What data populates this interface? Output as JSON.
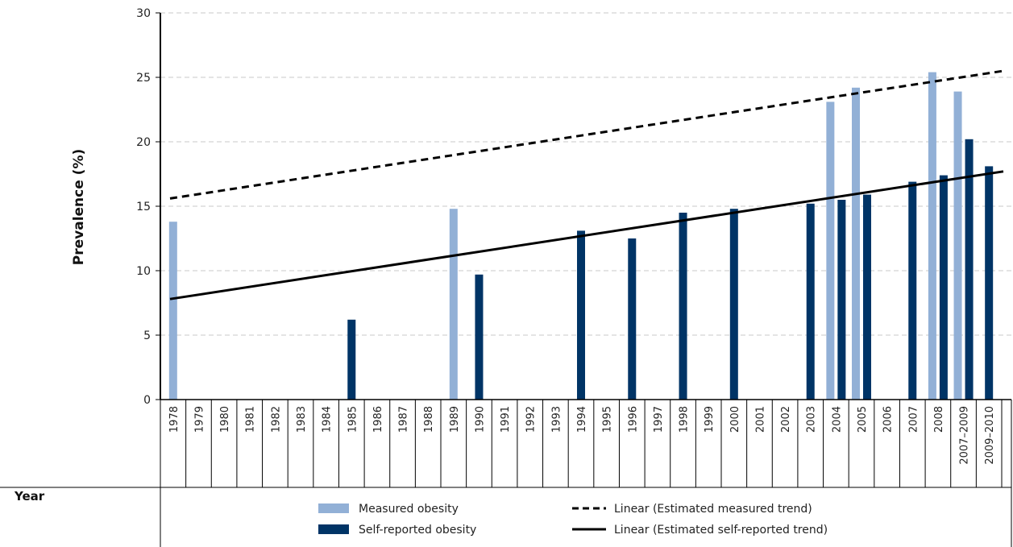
{
  "chart_data": {
    "type": "bar",
    "ylabel": "Prevalence (%)",
    "xlabel": "Year",
    "ylim": [
      0,
      30
    ],
    "yticks": [
      0,
      5,
      10,
      15,
      20,
      25,
      30
    ],
    "grid": true,
    "legend_position": "bottom",
    "categories": [
      "1978",
      "1979",
      "1980",
      "1981",
      "1982",
      "1983",
      "1984",
      "1985",
      "1986",
      "1987",
      "1988",
      "1989",
      "1990",
      "1991",
      "1992",
      "1993",
      "1994",
      "1995",
      "1996",
      "1997",
      "1998",
      "1999",
      "2000",
      "2001",
      "2002",
      "2003",
      "2004",
      "2005",
      "2006",
      "2007",
      "2008",
      "2007–2009",
      "2009–2010"
    ],
    "series": [
      {
        "name": "Measured obesity",
        "color": "#92B0D6",
        "values": [
          13.8,
          null,
          null,
          null,
          null,
          null,
          null,
          null,
          null,
          null,
          null,
          14.8,
          null,
          null,
          null,
          null,
          null,
          null,
          null,
          null,
          null,
          null,
          null,
          null,
          null,
          null,
          23.1,
          24.2,
          null,
          null,
          25.4,
          23.9,
          null
        ]
      },
      {
        "name": "Self-reported obesity",
        "color": "#003466",
        "values": [
          null,
          null,
          null,
          null,
          null,
          null,
          null,
          6.2,
          null,
          null,
          null,
          null,
          9.7,
          null,
          null,
          null,
          13.1,
          null,
          12.5,
          null,
          14.5,
          null,
          14.8,
          null,
          null,
          15.2,
          15.5,
          15.9,
          null,
          16.9,
          17.4,
          20.2,
          18.1
        ]
      }
    ],
    "trendlines": [
      {
        "name": "Linear (Estimated measured trend)",
        "style": "dashed",
        "color": "#000000",
        "start": 15.6,
        "end": 25.5
      },
      {
        "name": "Linear (Estimated self-reported trend)",
        "style": "solid",
        "color": "#000000",
        "start": 7.8,
        "end": 17.7
      }
    ]
  }
}
